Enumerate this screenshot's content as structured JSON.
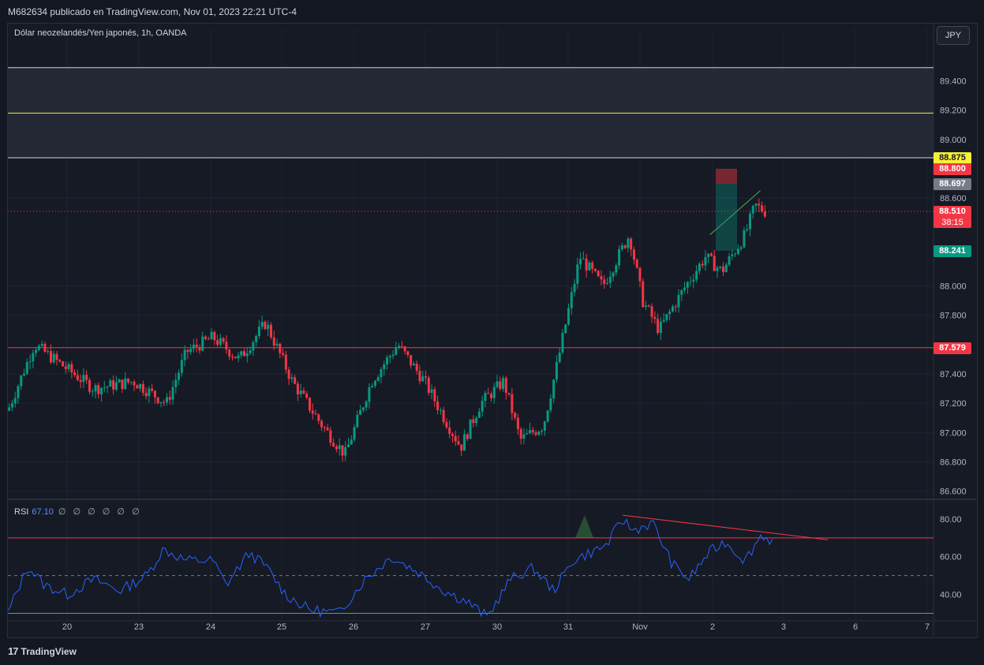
{
  "header": {
    "publish_line": "M682634 publicado en TradingView.com, Nov 01, 2023 22:21 UTC-4"
  },
  "symbol": {
    "title": "Dólar neozelandés/Yen japonés, 1h, OANDA",
    "currency": "JPY"
  },
  "rsi": {
    "label": "RSI",
    "value": "67.10",
    "extra": "∅ ∅ ∅ ∅ ∅ ∅"
  },
  "footer": {
    "brand": "TradingView",
    "logo": "17"
  },
  "price_tags": [
    {
      "label": "88.875",
      "price": 88.875,
      "bg": "#f7f036",
      "fg": "#131722"
    },
    {
      "label": "88.800",
      "price": 88.8,
      "bg": "#f23645",
      "fg": "#ffffff"
    },
    {
      "label": "88.697",
      "price": 88.697,
      "bg": "#787b86",
      "fg": "#ffffff"
    },
    {
      "label": "88.510",
      "price": 88.51,
      "bg": "#f23645",
      "fg": "#ffffff"
    },
    {
      "label": "38:15",
      "price": 88.435,
      "bg": "#f23645",
      "fg": "#ffffff"
    },
    {
      "label": "88.241",
      "price": 88.241,
      "bg": "#089981",
      "fg": "#ffffff"
    },
    {
      "label": "87.579",
      "price": 87.579,
      "bg": "#f23645",
      "fg": "#ffffff"
    }
  ],
  "colors": {
    "up": "#089981",
    "down": "#f23645",
    "rsi": "#2962ff",
    "support": "#f23645",
    "yellow": "#f7f036",
    "zone": "#2a2e39"
  },
  "chart_data": {
    "type": "candlestick",
    "title": "Dólar neozelandés/Yen japonés, 1h, OANDA",
    "xlabel": "",
    "ylabel": "",
    "x_ticks": [
      "20",
      "23",
      "24",
      "25",
      "26",
      "27",
      "30",
      "31",
      "Nov",
      "2",
      "3",
      "6",
      "7"
    ],
    "y_ticks": [
      "89.400",
      "89.200",
      "89.000",
      "88.600",
      "88.000",
      "87.800",
      "87.400",
      "87.200",
      "87.000",
      "86.800",
      "86.600"
    ],
    "ylim": [
      86.55,
      89.65
    ],
    "x_range": [
      19.2,
      7.0
    ],
    "grid": true,
    "horizontal_lines": [
      {
        "price": 89.49,
        "color": "#d1d4dc"
      },
      {
        "price": 89.18,
        "color": "#f7f036"
      },
      {
        "price": 88.875,
        "color": "#d1d4dc"
      },
      {
        "price": 87.579,
        "color": "#f23645"
      }
    ],
    "zone": {
      "from": 88.875,
      "to": 89.49
    },
    "current_price": 88.51,
    "position": {
      "entry": 88.697,
      "stop": 88.8,
      "target": 88.241
    },
    "trendline": {
      "from": [
        10.62,
        88.35
      ],
      "to": [
        11.38,
        88.65
      ]
    },
    "price_path": [
      [
        0.0,
        87.15
      ],
      [
        0.4,
        87.6
      ],
      [
        0.7,
        87.5
      ],
      [
        1.3,
        87.3
      ],
      [
        1.9,
        87.35
      ],
      [
        2.4,
        87.2
      ],
      [
        2.7,
        87.55
      ],
      [
        3.1,
        87.65
      ],
      [
        3.5,
        87.5
      ],
      [
        3.9,
        87.75
      ],
      [
        4.3,
        87.35
      ],
      [
        4.75,
        87.05
      ],
      [
        5.1,
        86.85
      ],
      [
        5.5,
        87.35
      ],
      [
        5.9,
        87.6
      ],
      [
        6.3,
        87.35
      ],
      [
        6.6,
        87.1
      ],
      [
        6.85,
        86.9
      ],
      [
        7.15,
        87.2
      ],
      [
        7.5,
        87.35
      ],
      [
        7.75,
        86.95
      ],
      [
        8.1,
        87.05
      ],
      [
        8.3,
        87.45
      ],
      [
        8.65,
        88.2
      ],
      [
        9.0,
        88.0
      ],
      [
        9.4,
        88.35
      ],
      [
        9.6,
        87.9
      ],
      [
        9.85,
        87.7
      ],
      [
        10.25,
        88.0
      ],
      [
        10.55,
        88.2
      ],
      [
        10.8,
        88.1
      ],
      [
        11.15,
        88.35
      ],
      [
        11.3,
        88.55
      ],
      [
        11.45,
        88.51
      ]
    ],
    "rsi": {
      "ylim": [
        26,
        90
      ],
      "y_ticks": [
        "80.00",
        "60.00",
        "40.00"
      ],
      "levels": [
        70,
        50,
        30
      ],
      "last": 67.1,
      "divergence": {
        "from": [
          9.3,
          82
        ],
        "to": [
          12.4,
          69
        ]
      },
      "path": [
        [
          0.0,
          30
        ],
        [
          0.3,
          55
        ],
        [
          0.55,
          45
        ],
        [
          0.9,
          40
        ],
        [
          1.3,
          48
        ],
        [
          1.7,
          42
        ],
        [
          2.1,
          50
        ],
        [
          2.35,
          64
        ],
        [
          2.7,
          58
        ],
        [
          3.1,
          58
        ],
        [
          3.3,
          45
        ],
        [
          3.65,
          62
        ],
        [
          3.9,
          55
        ],
        [
          4.2,
          40
        ],
        [
          4.55,
          32
        ],
        [
          5.0,
          30
        ],
        [
          5.4,
          48
        ],
        [
          5.8,
          60
        ],
        [
          6.2,
          52
        ],
        [
          6.6,
          42
        ],
        [
          6.95,
          36
        ],
        [
          7.25,
          28
        ],
        [
          7.6,
          48
        ],
        [
          7.95,
          54
        ],
        [
          8.25,
          42
        ],
        [
          8.55,
          58
        ],
        [
          8.8,
          62
        ],
        [
          9.05,
          66
        ],
        [
          9.3,
          80
        ],
        [
          9.45,
          74
        ],
        [
          9.75,
          78
        ],
        [
          10.05,
          56
        ],
        [
          10.3,
          48
        ],
        [
          10.6,
          62
        ],
        [
          10.85,
          68
        ],
        [
          11.15,
          58
        ],
        [
          11.4,
          72
        ],
        [
          11.6,
          67
        ]
      ]
    }
  }
}
